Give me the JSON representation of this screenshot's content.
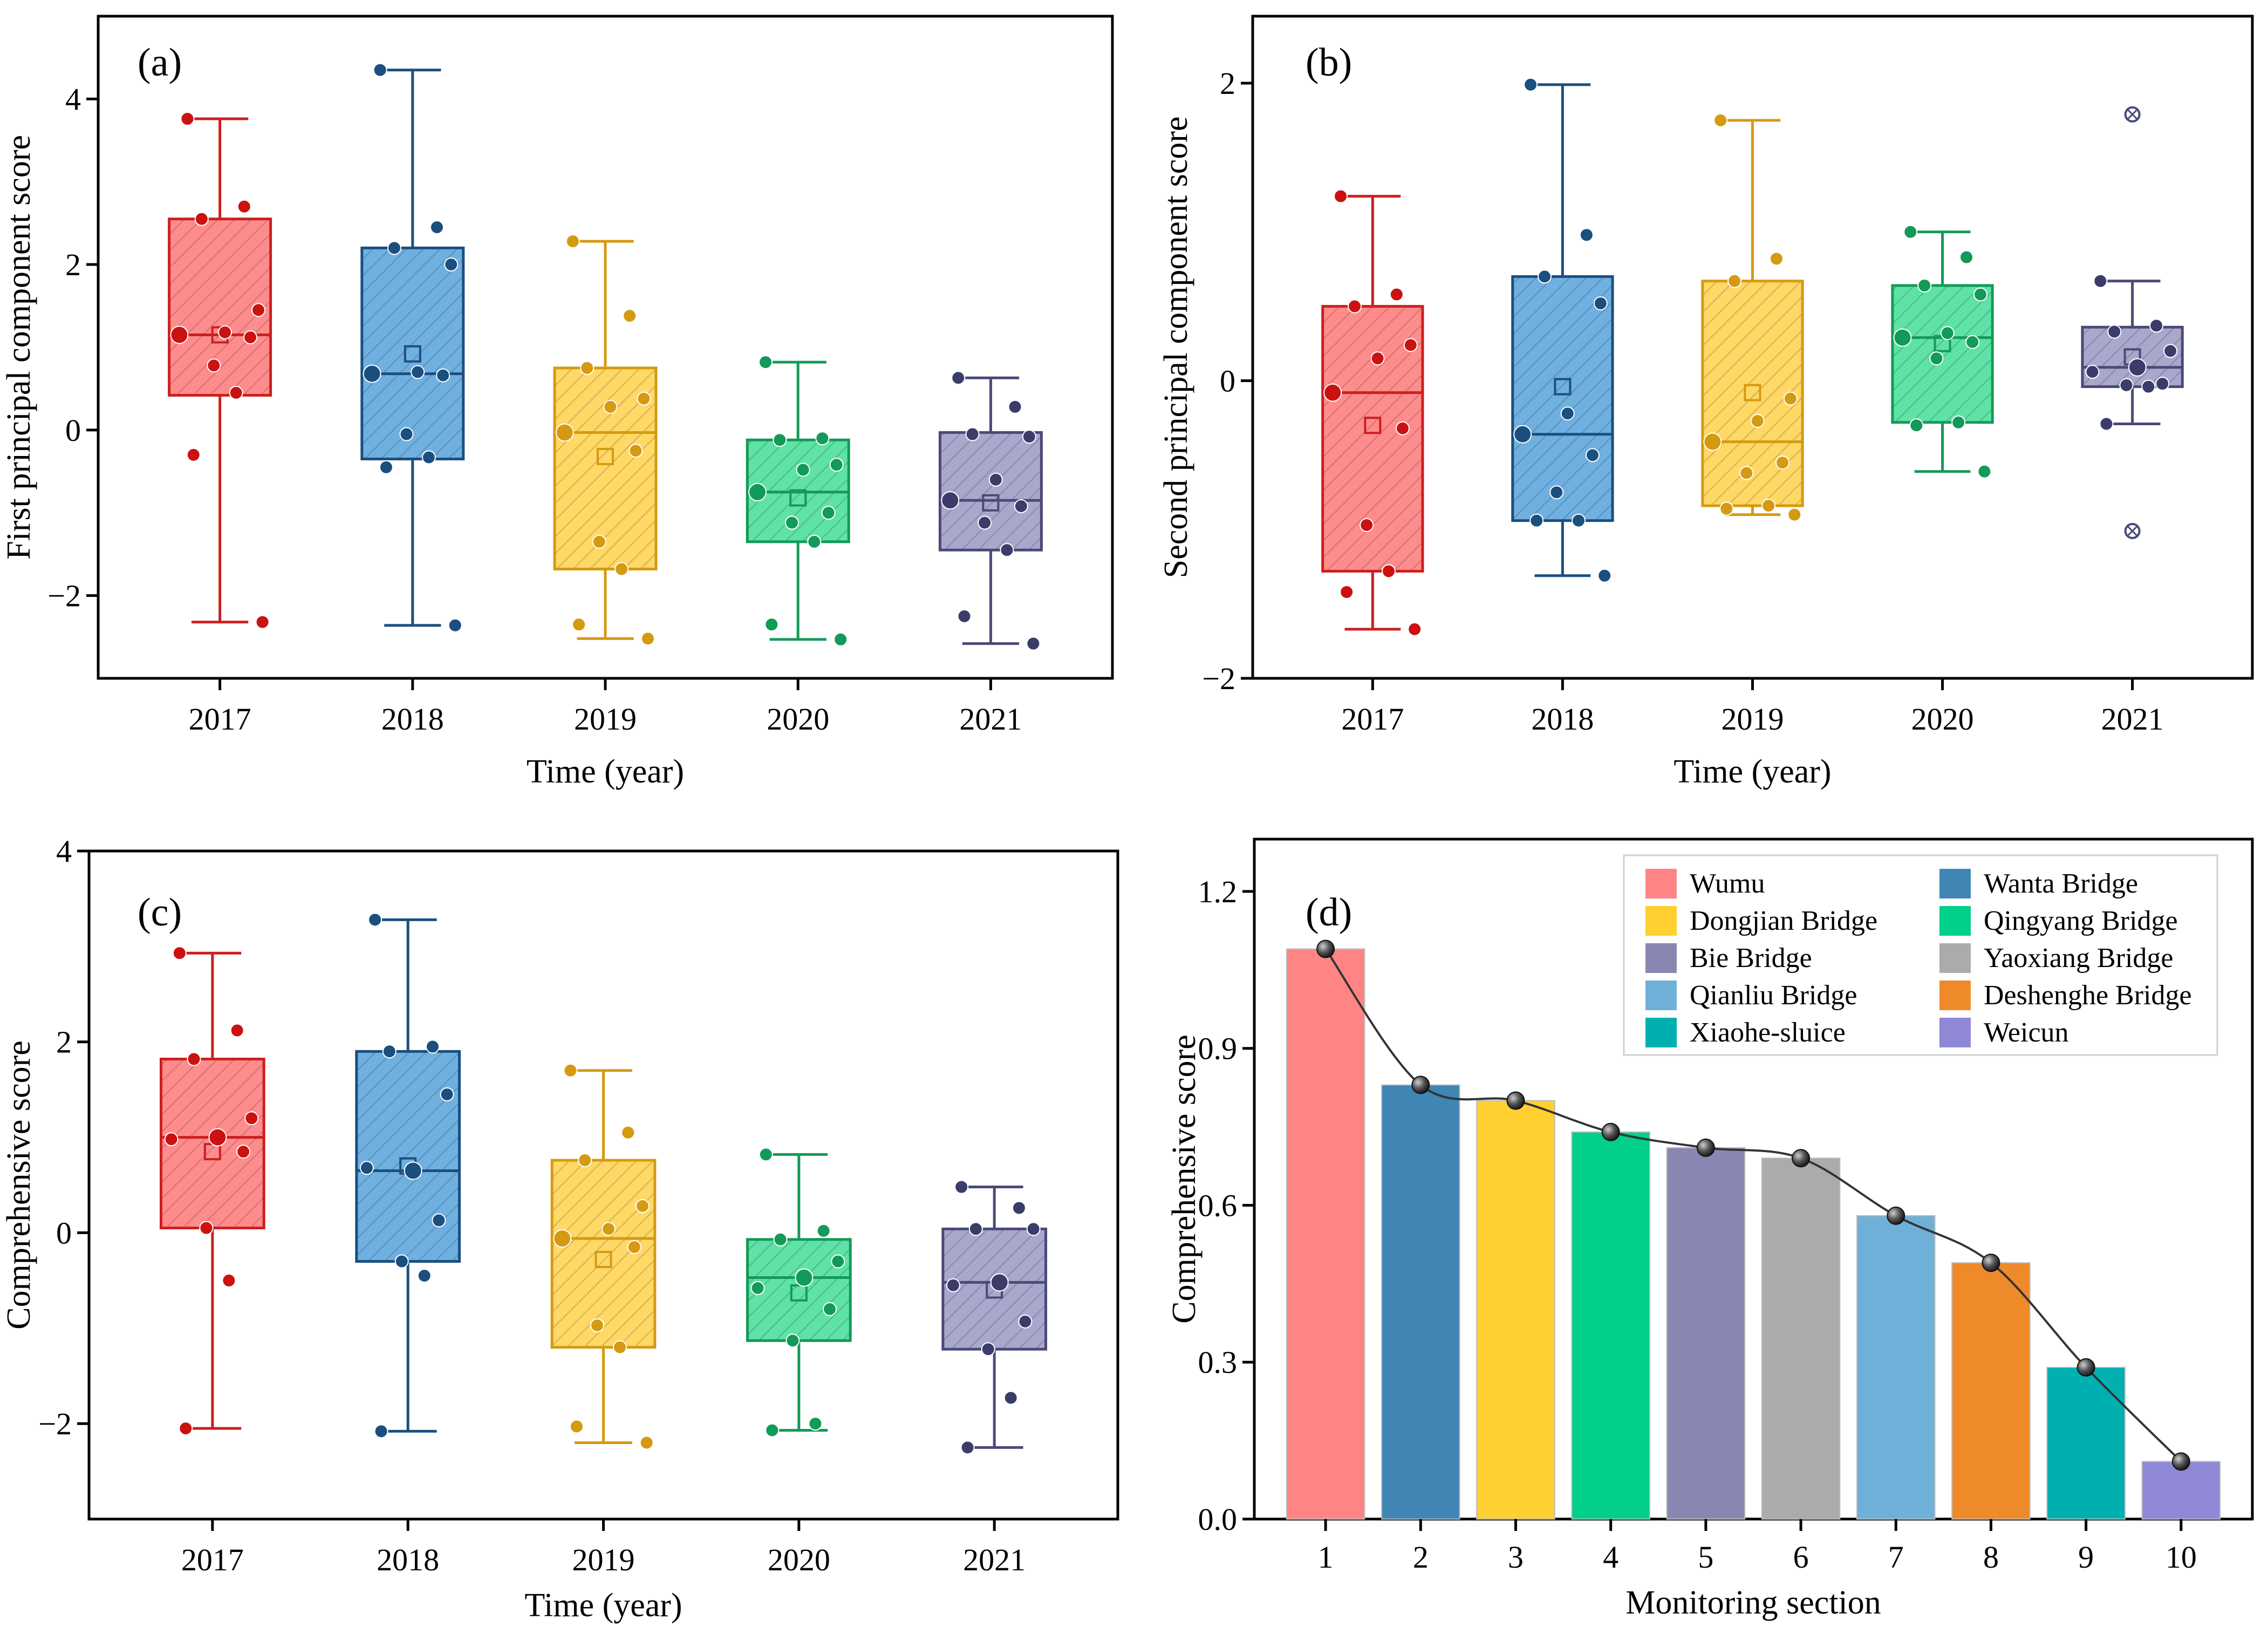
{
  "figure": {
    "panels": [
      "(a)",
      "(b)",
      "(c)",
      "(d)"
    ]
  },
  "palette": {
    "2017": {
      "edge": "#cc1f1f",
      "fill": "#ff8c8c",
      "dot": "#cc1111"
    },
    "2018": {
      "edge": "#1a4f7f",
      "fill": "#6fb0e0",
      "dot": "#1a4f7f"
    },
    "2019": {
      "edge": "#d59a10",
      "fill": "#ffd866",
      "dot": "#d59a10"
    },
    "2020": {
      "edge": "#139a58",
      "fill": "#5fe2a6",
      "dot": "#129a58"
    },
    "2021": {
      "edge": "#4a4a78",
      "fill": "#a9a7cc",
      "dot": "#3c3c6a"
    }
  },
  "chart_data": [
    {
      "panel": "(a)",
      "type": "box",
      "xlabel": "Time (year)",
      "ylabel": "First principal component score",
      "ylim": [
        -3.0,
        5.0
      ],
      "yticks": [
        "−2",
        "0",
        "2",
        "4"
      ],
      "ytick_values": [
        -2,
        0,
        2,
        4
      ],
      "categories": [
        "2017",
        "2018",
        "2019",
        "2020",
        "2021"
      ],
      "boxes": [
        {
          "q1": 0.42,
          "median": 1.15,
          "q3": 2.55,
          "whisker_low": -2.32,
          "whisker_high": 3.76,
          "mean": 1.15,
          "points": [
            3.76,
            2.7,
            2.55,
            1.45,
            1.18,
            1.15,
            1.12,
            0.78,
            0.45,
            -0.3,
            -2.32
          ]
        },
        {
          "q1": -0.35,
          "median": 0.68,
          "q3": 2.2,
          "whisker_low": -2.36,
          "whisker_high": 4.35,
          "mean": 0.92,
          "points": [
            4.35,
            2.45,
            2.2,
            2.0,
            0.7,
            0.68,
            0.66,
            -0.05,
            -0.33,
            -0.45,
            -2.36
          ]
        },
        {
          "q1": -1.68,
          "median": -0.03,
          "q3": 0.75,
          "whisker_low": -2.52,
          "whisker_high": 2.28,
          "mean": -0.32,
          "points": [
            2.28,
            1.38,
            0.75,
            0.38,
            0.28,
            -0.03,
            -0.25,
            -1.35,
            -1.68,
            -2.35,
            -2.52
          ]
        },
        {
          "q1": -1.35,
          "median": -0.75,
          "q3": -0.12,
          "whisker_low": -2.53,
          "whisker_high": 0.82,
          "mean": -0.82,
          "points": [
            0.82,
            -0.1,
            -0.12,
            -0.42,
            -0.48,
            -0.75,
            -1.0,
            -1.12,
            -1.35,
            -2.35,
            -2.53
          ]
        },
        {
          "q1": -1.45,
          "median": -0.85,
          "q3": -0.03,
          "whisker_low": -2.58,
          "whisker_high": 0.63,
          "mean": -0.88,
          "points": [
            0.63,
            0.28,
            -0.05,
            -0.08,
            -0.6,
            -0.85,
            -0.92,
            -1.12,
            -1.45,
            -2.25,
            -2.58
          ]
        }
      ]
    },
    {
      "panel": "(b)",
      "type": "box",
      "xlabel": "Time (year)",
      "ylabel": "Second principal component score",
      "ylim": [
        -2.0,
        2.45
      ],
      "yticks": [
        "−2",
        "0",
        "2"
      ],
      "ytick_values": [
        -2,
        0,
        2
      ],
      "categories": [
        "2017",
        "2018",
        "2019",
        "2020",
        "2021"
      ],
      "boxes": [
        {
          "q1": -1.28,
          "median": -0.08,
          "q3": 0.5,
          "whisker_low": -1.67,
          "whisker_high": 1.24,
          "mean": -0.3,
          "points": [
            1.24,
            0.58,
            0.5,
            0.24,
            0.15,
            -0.08,
            -0.32,
            -0.97,
            -1.28,
            -1.42,
            -1.67
          ]
        },
        {
          "q1": -0.94,
          "median": -0.36,
          "q3": 0.7,
          "whisker_low": -1.31,
          "whisker_high": 1.99,
          "mean": -0.04,
          "points": [
            1.99,
            0.98,
            0.7,
            0.52,
            -0.22,
            -0.36,
            -0.5,
            -0.75,
            -0.94,
            -0.94,
            -1.31
          ]
        },
        {
          "q1": -0.84,
          "median": -0.41,
          "q3": 0.67,
          "whisker_low": -0.9,
          "whisker_high": 1.75,
          "mean": -0.08,
          "points": [
            1.75,
            0.82,
            0.67,
            -0.12,
            -0.27,
            -0.41,
            -0.55,
            -0.62,
            -0.84,
            -0.86,
            -0.9
          ]
        },
        {
          "q1": -0.28,
          "median": 0.29,
          "q3": 0.64,
          "whisker_low": -0.61,
          "whisker_high": 1.0,
          "mean": 0.25,
          "points": [
            1.0,
            0.83,
            0.64,
            0.58,
            0.32,
            0.29,
            0.26,
            0.15,
            -0.28,
            -0.3,
            -0.61
          ]
        },
        {
          "q1": -0.04,
          "median": 0.09,
          "q3": 0.36,
          "whisker_low": -0.29,
          "whisker_high": 0.67,
          "mean": 0.16,
          "points": [
            0.67,
            0.37,
            0.33,
            0.2,
            0.09,
            0.06,
            -0.02,
            -0.03,
            -0.04,
            -0.29
          ],
          "outliers": [
            1.79,
            -1.01
          ]
        }
      ]
    },
    {
      "panel": "(c)",
      "type": "box",
      "xlabel": "Time (year)",
      "ylabel": "Comprehensive score",
      "ylim": [
        -3.0,
        4.0
      ],
      "yticks": [
        "−2",
        "0",
        "2",
        "4"
      ],
      "ytick_values": [
        -2,
        0,
        2,
        4
      ],
      "categories": [
        "2017",
        "2018",
        "2019",
        "2020",
        "2021"
      ],
      "boxes": [
        {
          "q1": 0.05,
          "median": 1.0,
          "q3": 1.82,
          "whisker_low": -2.05,
          "whisker_high": 2.93,
          "mean": 0.85,
          "points": [
            2.93,
            2.12,
            1.82,
            1.2,
            1.0,
            0.98,
            0.85,
            0.05,
            -0.5,
            -2.05
          ]
        },
        {
          "q1": -0.3,
          "median": 0.65,
          "q3": 1.9,
          "whisker_low": -2.08,
          "whisker_high": 3.28,
          "mean": 0.7,
          "points": [
            3.28,
            1.95,
            1.9,
            1.45,
            0.65,
            0.68,
            0.13,
            -0.3,
            -0.45,
            -2.08
          ]
        },
        {
          "q1": -1.2,
          "median": -0.06,
          "q3": 0.76,
          "whisker_low": -2.2,
          "whisker_high": 1.7,
          "mean": -0.28,
          "points": [
            1.7,
            1.05,
            0.76,
            0.28,
            0.04,
            -0.06,
            -0.15,
            -0.97,
            -1.2,
            -2.03,
            -2.2
          ]
        },
        {
          "q1": -1.13,
          "median": -0.47,
          "q3": -0.07,
          "whisker_low": -2.07,
          "whisker_high": 0.82,
          "mean": -0.63,
          "points": [
            0.82,
            0.02,
            -0.07,
            -0.3,
            -0.47,
            -0.58,
            -0.8,
            -1.13,
            -2.0,
            -2.07
          ]
        },
        {
          "q1": -1.22,
          "median": -0.52,
          "q3": 0.04,
          "whisker_low": -2.25,
          "whisker_high": 0.48,
          "mean": -0.6,
          "points": [
            0.48,
            0.26,
            0.04,
            0.04,
            -0.52,
            -0.55,
            -0.93,
            -1.22,
            -1.73,
            -2.25
          ]
        }
      ]
    },
    {
      "panel": "(d)",
      "type": "bar",
      "xlabel": "Monitoring section",
      "ylabel": "Comprehensive score",
      "ylim": [
        0.0,
        1.3
      ],
      "yticks": [
        "0.0",
        "0.3",
        "0.6",
        "0.9",
        "1.2"
      ],
      "ytick_values": [
        0.0,
        0.3,
        0.6,
        0.9,
        1.2
      ],
      "categories": [
        "1",
        "2",
        "3",
        "4",
        "5",
        "6",
        "7",
        "8",
        "9",
        "10"
      ],
      "values": [
        1.09,
        0.83,
        0.8,
        0.74,
        0.71,
        0.69,
        0.58,
        0.49,
        0.29,
        0.11
      ],
      "colors": [
        "#ff8585",
        "#3f86b5",
        "#ffd030",
        "#00d08a",
        "#8987b2",
        "#acabab",
        "#6fb0d8",
        "#ee8a2a",
        "#00b0b0",
        "#8e88d6"
      ],
      "legend": [
        "Wumu",
        "Wanta Bridge",
        "Dongjian Bridge",
        "Qingyang Bridge",
        "Bie Bridge",
        "Yaoxiang Bridge",
        "Qianliu Bridge",
        "Deshenghe Bridge",
        "Xiaohe-sluice",
        "Weicun"
      ],
      "legend_colors": [
        "#ff8585",
        "#3f86b5",
        "#ffd030",
        "#00d08a",
        "#8987b2",
        "#acabab",
        "#6fb0d8",
        "#ee8a2a",
        "#00b0b0",
        "#8e88d6"
      ],
      "line": "smoothed trend through bar tops"
    }
  ]
}
